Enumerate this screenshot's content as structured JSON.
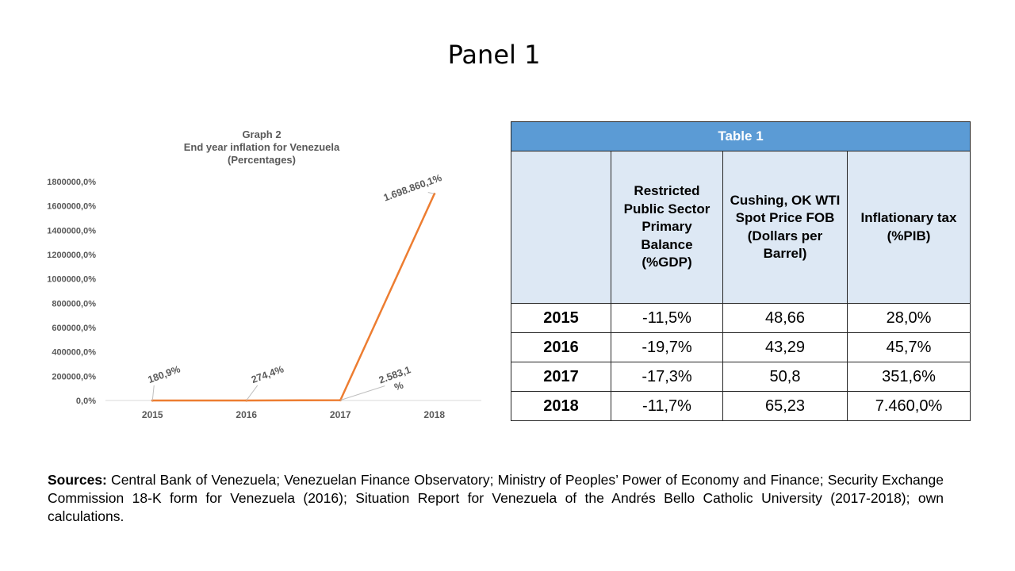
{
  "slide": {
    "title": "Panel 1"
  },
  "chart_data": {
    "type": "line",
    "title_lines": [
      "Graph 2",
      "End year inflation for Venezuela",
      "(Percentages)"
    ],
    "categories": [
      "2015",
      "2016",
      "2017",
      "2018"
    ],
    "values": [
      180.9,
      274.4,
      2583.1,
      1698860.1
    ],
    "data_labels": [
      "180,9%",
      "274,4%",
      "2.583,1 %",
      "1.698.860,1%"
    ],
    "ylim": [
      0,
      1800000
    ],
    "ytick_values": [
      0,
      200000,
      400000,
      600000,
      800000,
      1000000,
      1200000,
      1400000,
      1600000,
      1800000
    ],
    "ytick_labels": [
      "0,0%",
      "200000,0%",
      "400000,0%",
      "600000,0%",
      "800000,0%",
      "1000000,0%",
      "1200000,0%",
      "1400000,0%",
      "1600000,0%",
      "1800000,0%"
    ],
    "xlabel": "",
    "ylabel": "",
    "line_color": "#ed7d31"
  },
  "table": {
    "title": "Table 1",
    "headers": [
      "",
      "Restricted Public Sector Primary Balance (%GDP)",
      "Cushing, OK WTI Spot Price FOB (Dollars per Barrel)",
      "Inflationary tax (%PIB)"
    ],
    "rows": [
      {
        "year": "2015",
        "balance": "-11,5%",
        "wti": "48,66",
        "tax": "28,0%"
      },
      {
        "year": "2016",
        "balance": "-19,7%",
        "wti": "43,29",
        "tax": "45,7%"
      },
      {
        "year": "2017",
        "balance": "-17,3%",
        "wti": "50,8",
        "tax": "351,6%"
      },
      {
        "year": "2018",
        "balance": "-11,7%",
        "wti": "65,23",
        "tax": "7.460,0%"
      }
    ]
  },
  "sources": {
    "label": "Sources:",
    "text": " Central Bank of Venezuela; Venezuelan Finance Observatory; Ministry of Peoples’ Power of Economy and Finance; Security Exchange Commission 18-K form for Venezuela (2016); Situation Report for Venezuela of the Andrés Bello Catholic University (2017-2018); own calculations."
  },
  "colors": {
    "header_bg": "#5b9bd5",
    "subheader_bg": "#dde8f4",
    "line": "#ed7d31",
    "axis_text": "#595959"
  }
}
